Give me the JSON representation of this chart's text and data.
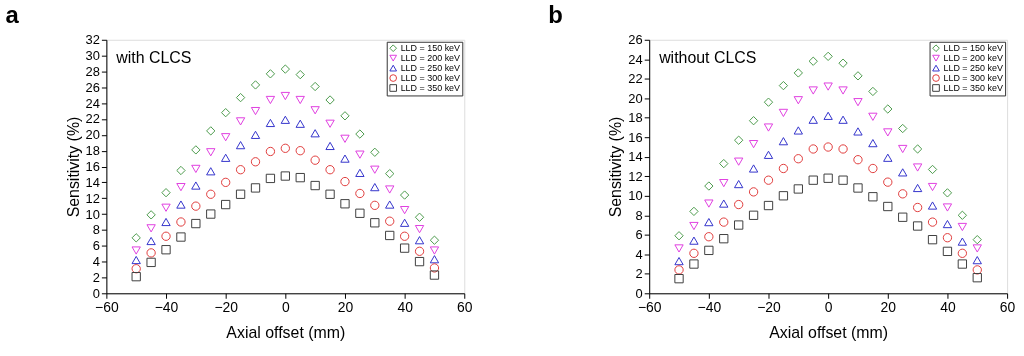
{
  "chart_data": [
    {
      "type": "scatter",
      "title": "a",
      "xlabel": "Axial offset (mm)",
      "ylabel": "Sensitivity (%)",
      "annotations": [
        "with CLCS"
      ],
      "legend": "top right",
      "xlim": [
        -60,
        60
      ],
      "xticks": [
        -60,
        -40,
        -20,
        0,
        20,
        40,
        60
      ],
      "ylim": [
        0,
        32
      ],
      "yticks": [
        0,
        2,
        4,
        6,
        8,
        10,
        12,
        14,
        16,
        18,
        20,
        22,
        24,
        26,
        28,
        30,
        32
      ],
      "x": [
        -50,
        -45,
        -40,
        -35,
        -30,
        -25,
        -20,
        -15,
        -10,
        -5,
        0,
        5,
        10,
        15,
        20,
        25,
        30,
        35,
        40,
        45,
        50
      ],
      "series": [
        {
          "name": "LLD = 150 keV",
          "color": "#4c9a4c",
          "marker": "diamond",
          "values": [
            7.0,
            9.9,
            12.7,
            15.5,
            18.1,
            20.5,
            22.8,
            24.7,
            26.3,
            27.7,
            28.3,
            27.6,
            26.1,
            24.4,
            22.4,
            20.1,
            17.8,
            15.1,
            12.4,
            9.6,
            6.7
          ]
        },
        {
          "name": "LLD = 200 keV",
          "color": "#e040e0",
          "marker": "triangle-down",
          "values": [
            5.4,
            8.2,
            10.8,
            13.4,
            15.7,
            17.8,
            19.7,
            21.7,
            23.0,
            24.4,
            24.9,
            24.4,
            23.1,
            21.4,
            19.5,
            17.5,
            15.6,
            13.1,
            10.5,
            8.1,
            5.4
          ]
        },
        {
          "name": "LLD = 250 keV",
          "color": "#3434cc",
          "marker": "triangle-up",
          "values": [
            4.2,
            6.6,
            9.0,
            11.2,
            13.6,
            15.4,
            17.1,
            18.7,
            20.0,
            21.5,
            21.9,
            21.4,
            20.2,
            18.6,
            17.0,
            15.2,
            13.4,
            11.2,
            8.9,
            6.7,
            4.3
          ]
        },
        {
          "name": "LLD = 300 keV",
          "color": "#e03c3c",
          "marker": "circle",
          "values": [
            3.1,
            5.1,
            7.2,
            9.0,
            11.0,
            12.5,
            14.0,
            15.6,
            16.6,
            17.9,
            18.3,
            18.0,
            16.8,
            15.6,
            14.1,
            12.6,
            11.1,
            9.1,
            7.2,
            5.3,
            3.2
          ]
        },
        {
          "name": "LLD = 350 keV",
          "color": "#404040",
          "marker": "square",
          "values": [
            2.1,
            3.9,
            5.5,
            7.1,
            8.8,
            10.0,
            11.2,
            12.5,
            13.3,
            14.5,
            14.8,
            14.6,
            13.6,
            12.5,
            11.3,
            10.1,
            8.9,
            7.3,
            5.7,
            4.0,
            2.3
          ]
        }
      ]
    },
    {
      "type": "scatter",
      "title": "b",
      "xlabel": "Axial offset (mm)",
      "ylabel": "Sensitivity (%)",
      "annotations": [
        "without CLCS"
      ],
      "legend": "top right",
      "xlim": [
        -60,
        60
      ],
      "xticks": [
        -60,
        -40,
        -20,
        0,
        20,
        40,
        60
      ],
      "ylim": [
        0,
        26
      ],
      "yticks": [
        0,
        2,
        4,
        6,
        8,
        10,
        12,
        14,
        16,
        18,
        20,
        22,
        24,
        26
      ],
      "x": [
        -50,
        -45,
        -40,
        -35,
        -30,
        -25,
        -20,
        -15,
        -10,
        -5,
        0,
        5,
        10,
        15,
        20,
        25,
        30,
        35,
        40,
        45,
        50
      ],
      "series": [
        {
          "name": "LLD = 150 keV",
          "color": "#4c9a4c",
          "marker": "diamond",
          "values": [
            5.9,
            8.4,
            11.0,
            13.3,
            15.7,
            17.7,
            19.6,
            21.3,
            22.6,
            23.8,
            24.3,
            23.6,
            22.3,
            20.7,
            18.9,
            16.9,
            14.8,
            12.7,
            10.3,
            8.0,
            5.5
          ]
        },
        {
          "name": "LLD = 200 keV",
          "color": "#e040e0",
          "marker": "triangle-down",
          "values": [
            4.6,
            6.9,
            9.2,
            11.3,
            13.5,
            15.3,
            17.0,
            18.5,
            19.8,
            20.8,
            21.2,
            20.8,
            19.6,
            18.1,
            16.5,
            14.8,
            12.9,
            10.9,
            8.8,
            6.8,
            4.6
          ]
        },
        {
          "name": "LLD = 250 keV",
          "color": "#3434cc",
          "marker": "triangle-up",
          "values": [
            3.3,
            5.4,
            7.3,
            9.2,
            11.2,
            12.8,
            14.2,
            15.6,
            16.7,
            17.8,
            18.2,
            17.8,
            16.6,
            15.4,
            13.9,
            12.4,
            10.8,
            9.0,
            7.1,
            5.3,
            3.4
          ]
        },
        {
          "name": "LLD = 300 keV",
          "color": "#e03c3c",
          "marker": "circle",
          "values": [
            2.4,
            4.1,
            5.8,
            7.3,
            9.1,
            10.4,
            11.6,
            12.8,
            13.8,
            14.8,
            15.0,
            14.8,
            13.7,
            12.8,
            11.4,
            10.2,
            8.8,
            7.3,
            5.7,
            4.1,
            2.4
          ]
        },
        {
          "name": "LLD = 350 keV",
          "color": "#404040",
          "marker": "square",
          "values": [
            1.5,
            3.0,
            4.4,
            5.6,
            7.0,
            8.0,
            9.0,
            10.0,
            10.7,
            11.6,
            11.8,
            11.6,
            10.8,
            9.9,
            8.9,
            7.8,
            6.9,
            5.5,
            4.3,
            3.0,
            1.6
          ]
        }
      ]
    }
  ]
}
